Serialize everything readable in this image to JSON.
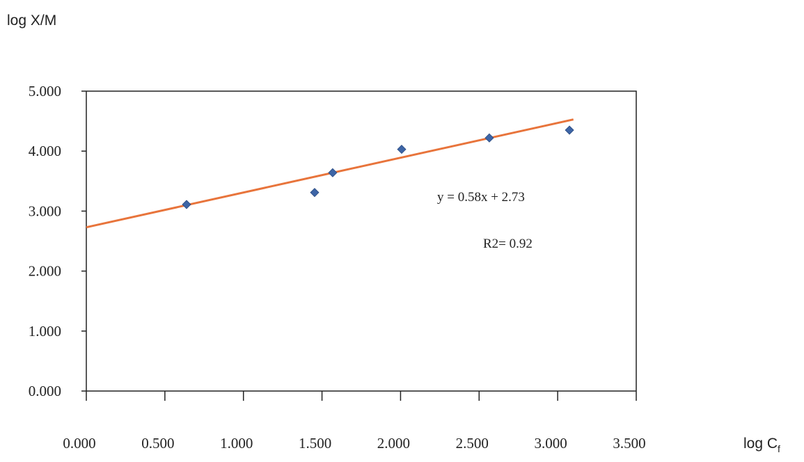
{
  "chart_data": {
    "type": "scatter",
    "y_label": "log X/M",
    "x_label": "log C",
    "x_label_subscript": "f",
    "x": [
      0.638,
      1.453,
      1.568,
      2.007,
      2.565,
      3.075
    ],
    "values": [
      3.11,
      3.31,
      3.64,
      4.03,
      4.22,
      4.35
    ],
    "color": "#3d65a6",
    "xlim": [
      0,
      3.5
    ],
    "ylim": [
      0,
      5
    ],
    "xticks": [
      {
        "value": 0,
        "label": "0.000"
      },
      {
        "value": 0.5,
        "label": "0.500"
      },
      {
        "value": 1,
        "label": "1.000"
      },
      {
        "value": 1.5,
        "label": "1.500"
      },
      {
        "value": 2,
        "label": "2.000"
      },
      {
        "value": 2.5,
        "label": "2.500"
      },
      {
        "value": 3,
        "label": "3.000"
      },
      {
        "value": 3.5,
        "label": "3.500"
      }
    ],
    "yticks": [
      {
        "value": 0,
        "label": "0.000"
      },
      {
        "value": 1,
        "label": "1.000"
      },
      {
        "value": 2,
        "label": "2.000"
      },
      {
        "value": 3,
        "label": "3.000"
      },
      {
        "value": 4,
        "label": "4.000"
      },
      {
        "value": 5,
        "label": "5.000"
      }
    ],
    "trendline": {
      "slope": 0.58,
      "intercept": 2.73,
      "x_end": 3.1,
      "color": "#e8743b"
    },
    "equation": "y = 0.58x + 2.73",
    "r_squared_label": "R2= 0.92"
  }
}
